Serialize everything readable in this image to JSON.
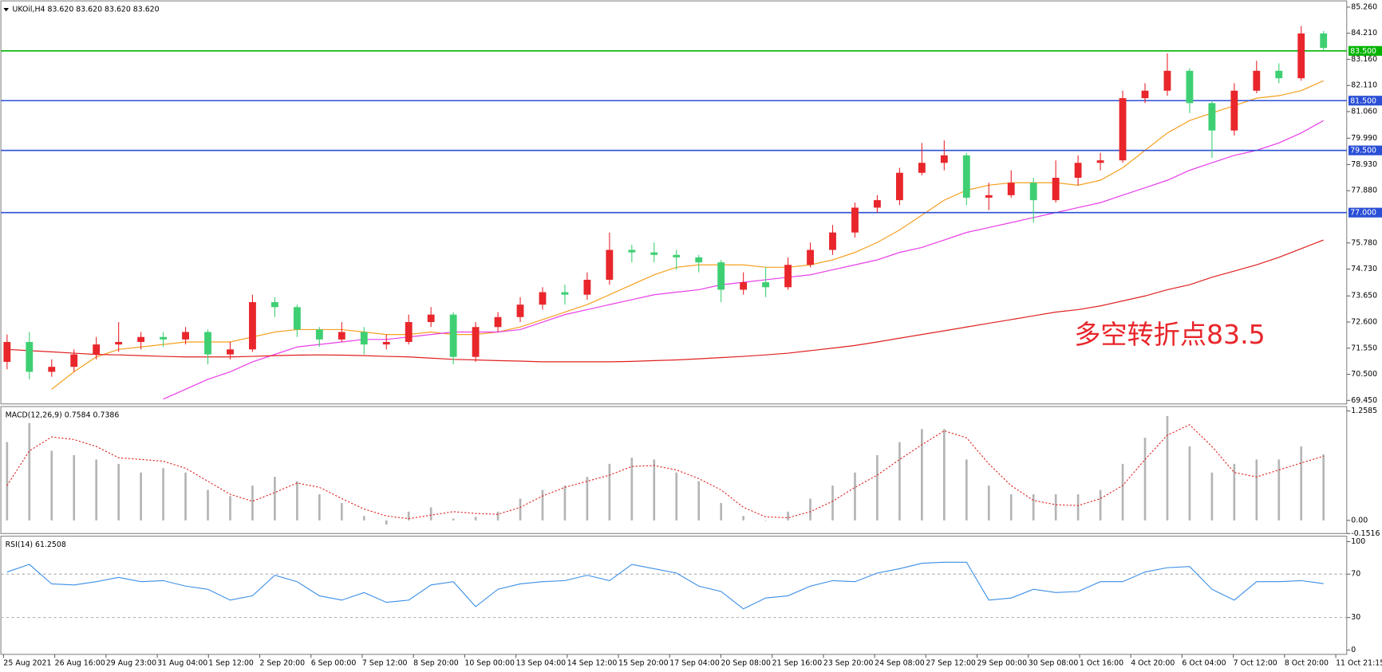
{
  "chart_data": [
    {
      "type": "candlestick",
      "title": "UKOil,H4  83.620 83.620 83.620 83.620",
      "open": [
        71.0,
        71.8,
        70.6,
        70.8,
        71.3,
        71.7,
        71.8,
        72.0,
        71.9,
        72.2,
        71.3,
        71.5,
        73.4,
        73.2,
        72.3,
        71.9,
        72.2,
        71.7,
        71.8,
        72.6,
        72.9,
        71.2,
        72.4,
        72.8,
        73.3,
        73.8,
        73.7,
        74.3,
        75.5,
        75.4,
        75.3,
        75.2,
        75.0,
        73.9,
        74.2,
        74.0,
        74.9,
        75.5,
        76.2,
        77.2,
        77.5,
        78.6,
        79.0,
        79.3,
        77.6,
        77.7,
        78.2,
        77.5,
        78.4,
        79.0,
        79.1,
        81.6,
        81.9,
        82.7,
        81.4,
        80.3,
        81.9,
        82.7,
        82.4,
        84.2
      ],
      "high": [
        72.1,
        72.2,
        71.1,
        71.5,
        72.0,
        72.6,
        72.2,
        72.2,
        72.4,
        72.3,
        71.8,
        73.7,
        73.6,
        73.3,
        72.4,
        72.6,
        72.4,
        72.1,
        72.9,
        73.2,
        73.0,
        72.6,
        73.0,
        73.6,
        74.0,
        74.1,
        74.6,
        76.2,
        75.7,
        75.8,
        75.5,
        75.3,
        75.1,
        74.6,
        74.8,
        75.2,
        75.8,
        76.5,
        77.4,
        77.7,
        78.8,
        79.8,
        79.9,
        79.4,
        78.2,
        78.7,
        78.4,
        79.1,
        79.3,
        79.4,
        81.9,
        82.2,
        83.4,
        82.8,
        81.5,
        82.2,
        83.1,
        83.0,
        84.5,
        84.3
      ],
      "low": [
        70.7,
        70.3,
        70.4,
        70.6,
        71.1,
        71.4,
        71.5,
        71.6,
        71.7,
        70.9,
        71.1,
        71.4,
        72.8,
        72.0,
        71.6,
        71.8,
        71.3,
        71.5,
        71.7,
        72.4,
        70.9,
        71.0,
        72.2,
        72.6,
        73.1,
        73.3,
        73.5,
        74.1,
        75.0,
        75.0,
        74.7,
        74.6,
        73.4,
        73.7,
        73.6,
        73.9,
        74.8,
        75.3,
        76.0,
        77.0,
        77.3,
        78.5,
        78.7,
        77.3,
        77.1,
        77.6,
        76.6,
        77.4,
        78.1,
        78.7,
        79.0,
        81.4,
        81.7,
        81.0,
        79.2,
        80.1,
        81.8,
        82.2,
        82.3,
        83.5
      ],
      "close": [
        71.8,
        70.6,
        70.8,
        71.3,
        71.7,
        71.8,
        72.0,
        71.9,
        72.2,
        71.3,
        71.5,
        73.4,
        73.2,
        72.3,
        71.9,
        72.2,
        71.7,
        71.8,
        72.6,
        72.9,
        71.2,
        72.4,
        72.8,
        73.3,
        73.8,
        73.7,
        74.3,
        75.5,
        75.4,
        75.3,
        75.2,
        75.0,
        73.9,
        74.2,
        74.0,
        74.9,
        75.5,
        76.2,
        77.2,
        77.5,
        78.6,
        79.0,
        79.3,
        77.6,
        77.7,
        78.2,
        77.5,
        78.4,
        79.0,
        79.1,
        81.6,
        81.9,
        82.7,
        81.4,
        80.3,
        81.9,
        82.7,
        82.4,
        84.2,
        83.62
      ],
      "up_color": "#e8262b",
      "down_color": "#3ecf73",
      "lines": [
        {
          "color": "#f5a020",
          "values": [
            null,
            null,
            69.9,
            70.6,
            71.2,
            71.5,
            71.6,
            71.7,
            71.8,
            71.8,
            71.8,
            72.0,
            72.2,
            72.3,
            72.3,
            72.3,
            72.2,
            72.1,
            72.1,
            72.2,
            72.1,
            72.1,
            72.2,
            72.4,
            72.7,
            73.0,
            73.3,
            73.7,
            74.1,
            74.5,
            74.8,
            74.9,
            74.9,
            74.9,
            74.8,
            74.8,
            74.9,
            75.1,
            75.4,
            75.8,
            76.3,
            76.9,
            77.5,
            77.9,
            78.1,
            78.2,
            78.2,
            78.2,
            78.1,
            78.3,
            78.8,
            79.5,
            80.2,
            80.7,
            81.0,
            81.3,
            81.6,
            81.7,
            81.9,
            82.3
          ]
        },
        {
          "color": "#e83ee8",
          "values": [
            null,
            null,
            null,
            null,
            null,
            null,
            null,
            69.5,
            69.9,
            70.3,
            70.6,
            71.0,
            71.3,
            71.6,
            71.7,
            71.8,
            71.9,
            71.9,
            72.0,
            72.1,
            72.2,
            72.2,
            72.2,
            72.3,
            72.6,
            72.9,
            73.1,
            73.3,
            73.5,
            73.7,
            73.8,
            73.9,
            74.1,
            74.2,
            74.3,
            74.4,
            74.5,
            74.7,
            74.9,
            75.1,
            75.4,
            75.6,
            75.9,
            76.2,
            76.4,
            76.6,
            76.8,
            77.0,
            77.2,
            77.4,
            77.7,
            78.0,
            78.3,
            78.7,
            79.0,
            79.3,
            79.5,
            79.8,
            80.2,
            80.7
          ]
        },
        {
          "color": "#e02020",
          "values": [
            71.5,
            71.45,
            71.4,
            71.35,
            71.3,
            71.28,
            71.25,
            71.22,
            71.2,
            71.2,
            71.2,
            71.22,
            71.25,
            71.27,
            71.28,
            71.27,
            71.25,
            71.22,
            71.2,
            71.15,
            71.1,
            71.08,
            71.05,
            71.03,
            71.0,
            71.0,
            71.0,
            71.0,
            71.02,
            71.05,
            71.08,
            71.12,
            71.17,
            71.22,
            71.28,
            71.35,
            71.45,
            71.55,
            71.66,
            71.8,
            71.95,
            72.1,
            72.25,
            72.4,
            72.55,
            72.7,
            72.85,
            73.0,
            73.1,
            73.25,
            73.45,
            73.65,
            73.9,
            74.1,
            74.4,
            74.65,
            74.9,
            75.2,
            75.55,
            75.9
          ]
        }
      ],
      "levels": [
        {
          "value": 83.5,
          "label": "83.500",
          "color": "#00b400"
        },
        {
          "value": 81.5,
          "label": "81.500",
          "color": "#2a4fd6"
        },
        {
          "value": 79.5,
          "label": "79.500",
          "color": "#2a4fd6"
        },
        {
          "value": 77.0,
          "label": "77.000",
          "color": "#2a4fd6"
        }
      ],
      "annotation": "多空转折点83.5",
      "ylim": [
        69.31,
        85.51
      ],
      "yticks": [
        {
          "value": 85.26,
          "label": "85.260"
        },
        {
          "value": 84.21,
          "label": "84.210"
        },
        {
          "value": 83.16,
          "label": "83.160"
        },
        {
          "value": 82.11,
          "label": "82.110"
        },
        {
          "value": 81.06,
          "label": "81.060"
        },
        {
          "value": 79.99,
          "label": "79.990"
        },
        {
          "value": 78.93,
          "label": "78.930"
        },
        {
          "value": 77.88,
          "label": "77.880"
        },
        {
          "value": 75.78,
          "label": "75.780"
        },
        {
          "value": 74.73,
          "label": "74.730"
        },
        {
          "value": 73.65,
          "label": "73.650"
        },
        {
          "value": 72.6,
          "label": "72.600"
        },
        {
          "value": 71.55,
          "label": "71.550"
        },
        {
          "value": 70.5,
          "label": "70.500"
        },
        {
          "value": 69.45,
          "label": "69.450"
        }
      ]
    },
    {
      "type": "macd",
      "title": "MACD(12,26,9) 0.7584 0.7386",
      "values": [
        0.9,
        1.12,
        0.8,
        0.75,
        0.7,
        0.65,
        0.55,
        0.6,
        0.55,
        0.35,
        0.28,
        0.4,
        0.5,
        0.45,
        0.3,
        0.2,
        0.05,
        -0.05,
        0.1,
        0.15,
        0.02,
        0.04,
        0.1,
        0.25,
        0.35,
        0.4,
        0.5,
        0.65,
        0.72,
        0.7,
        0.55,
        0.45,
        0.2,
        0.05,
        0.0,
        0.1,
        0.25,
        0.4,
        0.55,
        0.75,
        0.9,
        1.05,
        1.05,
        0.7,
        0.4,
        0.3,
        0.3,
        0.3,
        0.3,
        0.35,
        0.65,
        0.95,
        1.2,
        0.85,
        0.55,
        0.65,
        0.7,
        0.7,
        0.85,
        0.7584
      ],
      "color": "#b4b4b4",
      "signal": [
        0.4,
        0.8,
        0.96,
        0.93,
        0.85,
        0.72,
        0.7,
        0.68,
        0.6,
        0.45,
        0.3,
        0.22,
        0.32,
        0.43,
        0.38,
        0.25,
        0.13,
        0.05,
        0.02,
        0.06,
        0.1,
        0.08,
        0.07,
        0.15,
        0.28,
        0.38,
        0.45,
        0.52,
        0.62,
        0.63,
        0.58,
        0.48,
        0.35,
        0.15,
        0.04,
        0.03,
        0.1,
        0.22,
        0.38,
        0.52,
        0.7,
        0.87,
        1.03,
        0.95,
        0.65,
        0.4,
        0.23,
        0.18,
        0.17,
        0.25,
        0.4,
        0.7,
        0.98,
        1.1,
        0.85,
        0.55,
        0.5,
        0.58,
        0.66,
        0.7386
      ],
      "signal_color": "#e02020",
      "ylim": [
        -0.1516,
        1.309
      ],
      "yticks": [
        1.2585,
        {
          "value": 0,
          "label": "0.00"
        },
        -0.1516
      ]
    },
    {
      "type": "line",
      "title": "RSI(14) 61.2508",
      "values": [
        72,
        79,
        61,
        60,
        63,
        67,
        63,
        64,
        59,
        56,
        46,
        50,
        69,
        63,
        50,
        46,
        53,
        44,
        46,
        60,
        63,
        40,
        56,
        61,
        63,
        64,
        69,
        64,
        79,
        75,
        71,
        59,
        54,
        38,
        48,
        50,
        59,
        64,
        63,
        71,
        75,
        80,
        81,
        81,
        46,
        48,
        56,
        53,
        54,
        63,
        63,
        72,
        76,
        77,
        56,
        46,
        63,
        63,
        64,
        61.2508
      ],
      "color": "#3a8ee6",
      "levels": [
        70,
        30
      ],
      "ylim": [
        -4,
        105
      ],
      "yticks": [
        100,
        70,
        30,
        0
      ]
    }
  ],
  "time_axis": [
    "25 Aug 2021",
    "26 Aug 16:00",
    "29 Aug 23:00",
    "31 Aug 04:00",
    "1 Sep 12:00",
    "2 Sep 20:00",
    "6 Sep 00:00",
    "7 Sep 12:00",
    "8 Sep 20:00",
    "10 Sep 00:00",
    "13 Sep 04:00",
    "14 Sep 12:00",
    "15 Sep 20:00",
    "17 Sep 04:00",
    "20 Sep 08:00",
    "21 Sep 16:00",
    "23 Sep 20:00",
    "24 Sep 08:00",
    "27 Sep 12:00",
    "29 Sep 00:00",
    "30 Sep 08:00",
    "1 Oct 16:00",
    "4 Oct 20:00",
    "6 Oct 04:00",
    "7 Oct 12:00",
    "8 Oct 20:00",
    "11 Oct 21:15"
  ]
}
